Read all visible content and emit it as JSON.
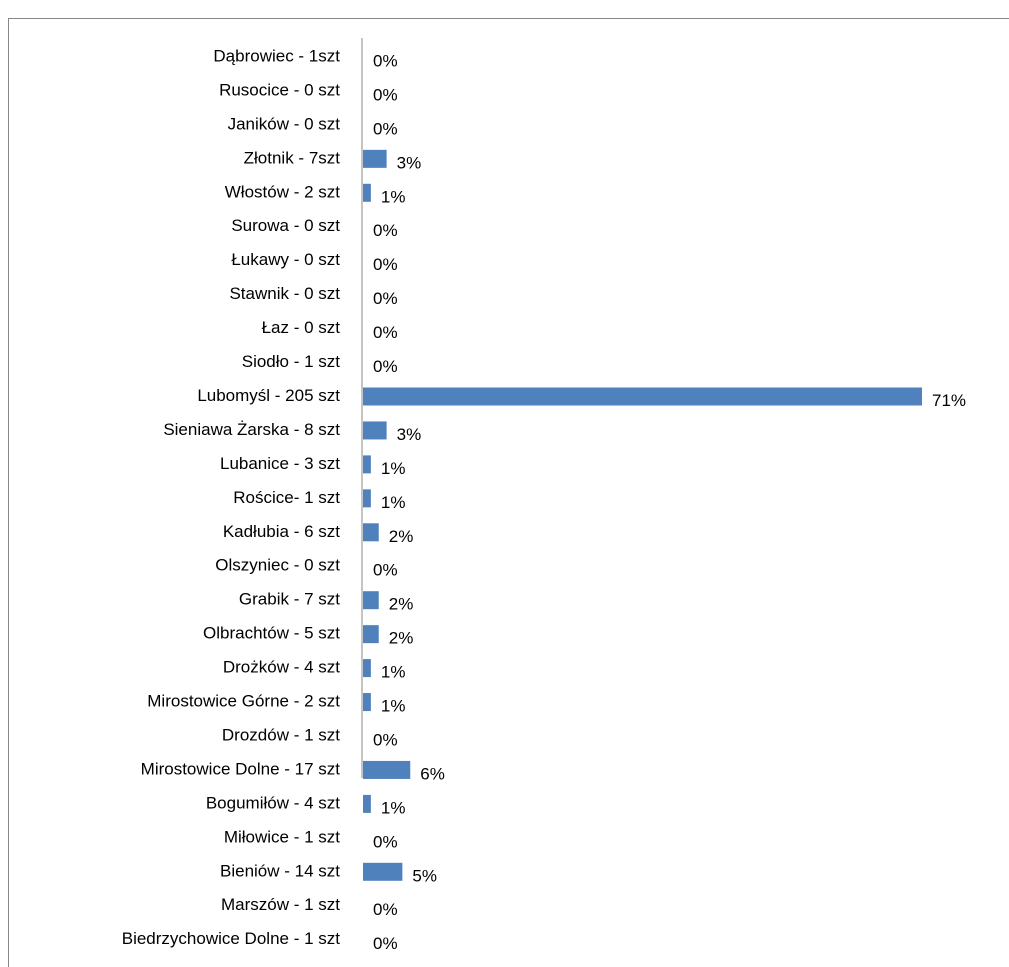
{
  "chart_data": {
    "type": "bar",
    "orientation": "horizontal",
    "color": "#4f81bd",
    "categories": [
      "Dąbrowiec - 1szt",
      "Rusocice - 0 szt",
      "Janików - 0 szt",
      "Złotnik - 7szt",
      "Włostów - 2 szt",
      "Surowa - 0 szt",
      "Łukawy - 0 szt",
      "Stawnik - 0 szt",
      "Łaz - 0 szt",
      "Siodło - 1 szt",
      "Lubomyśl - 205 szt",
      "Sieniawa Żarska - 8 szt",
      "Lubanice - 3 szt",
      "Rościce- 1 szt",
      "Kadłubia - 6 szt",
      "Olszyniec - 0 szt",
      "Grabik - 7 szt",
      "Olbrachtów - 5 szt",
      "Drożków - 4 szt",
      "Mirostowice Górne - 2 szt",
      "Drozdów - 1 szt",
      "Mirostowice Dolne - 17 szt",
      "Bogumiłów - 4 szt",
      "Miłowice - 1 szt",
      "Bieniów - 14 szt",
      "Marszów - 1 szt",
      "Biedrzychowice Dolne - 1 szt"
    ],
    "values": [
      0,
      0,
      0,
      3,
      1,
      0,
      0,
      0,
      0,
      0,
      71,
      3,
      1,
      1,
      2,
      0,
      2,
      2,
      1,
      1,
      0,
      6,
      1,
      0,
      5,
      0,
      0
    ],
    "value_labels": [
      "0%",
      "0%",
      "0%",
      "3%",
      "1%",
      "0%",
      "0%",
      "0%",
      "0%",
      "0%",
      "71%",
      "3%",
      "1%",
      "1%",
      "2%",
      "0%",
      "2%",
      "2%",
      "1%",
      "1%",
      "0%",
      "6%",
      "1%",
      "0%",
      "5%",
      "0%",
      "0%"
    ]
  }
}
